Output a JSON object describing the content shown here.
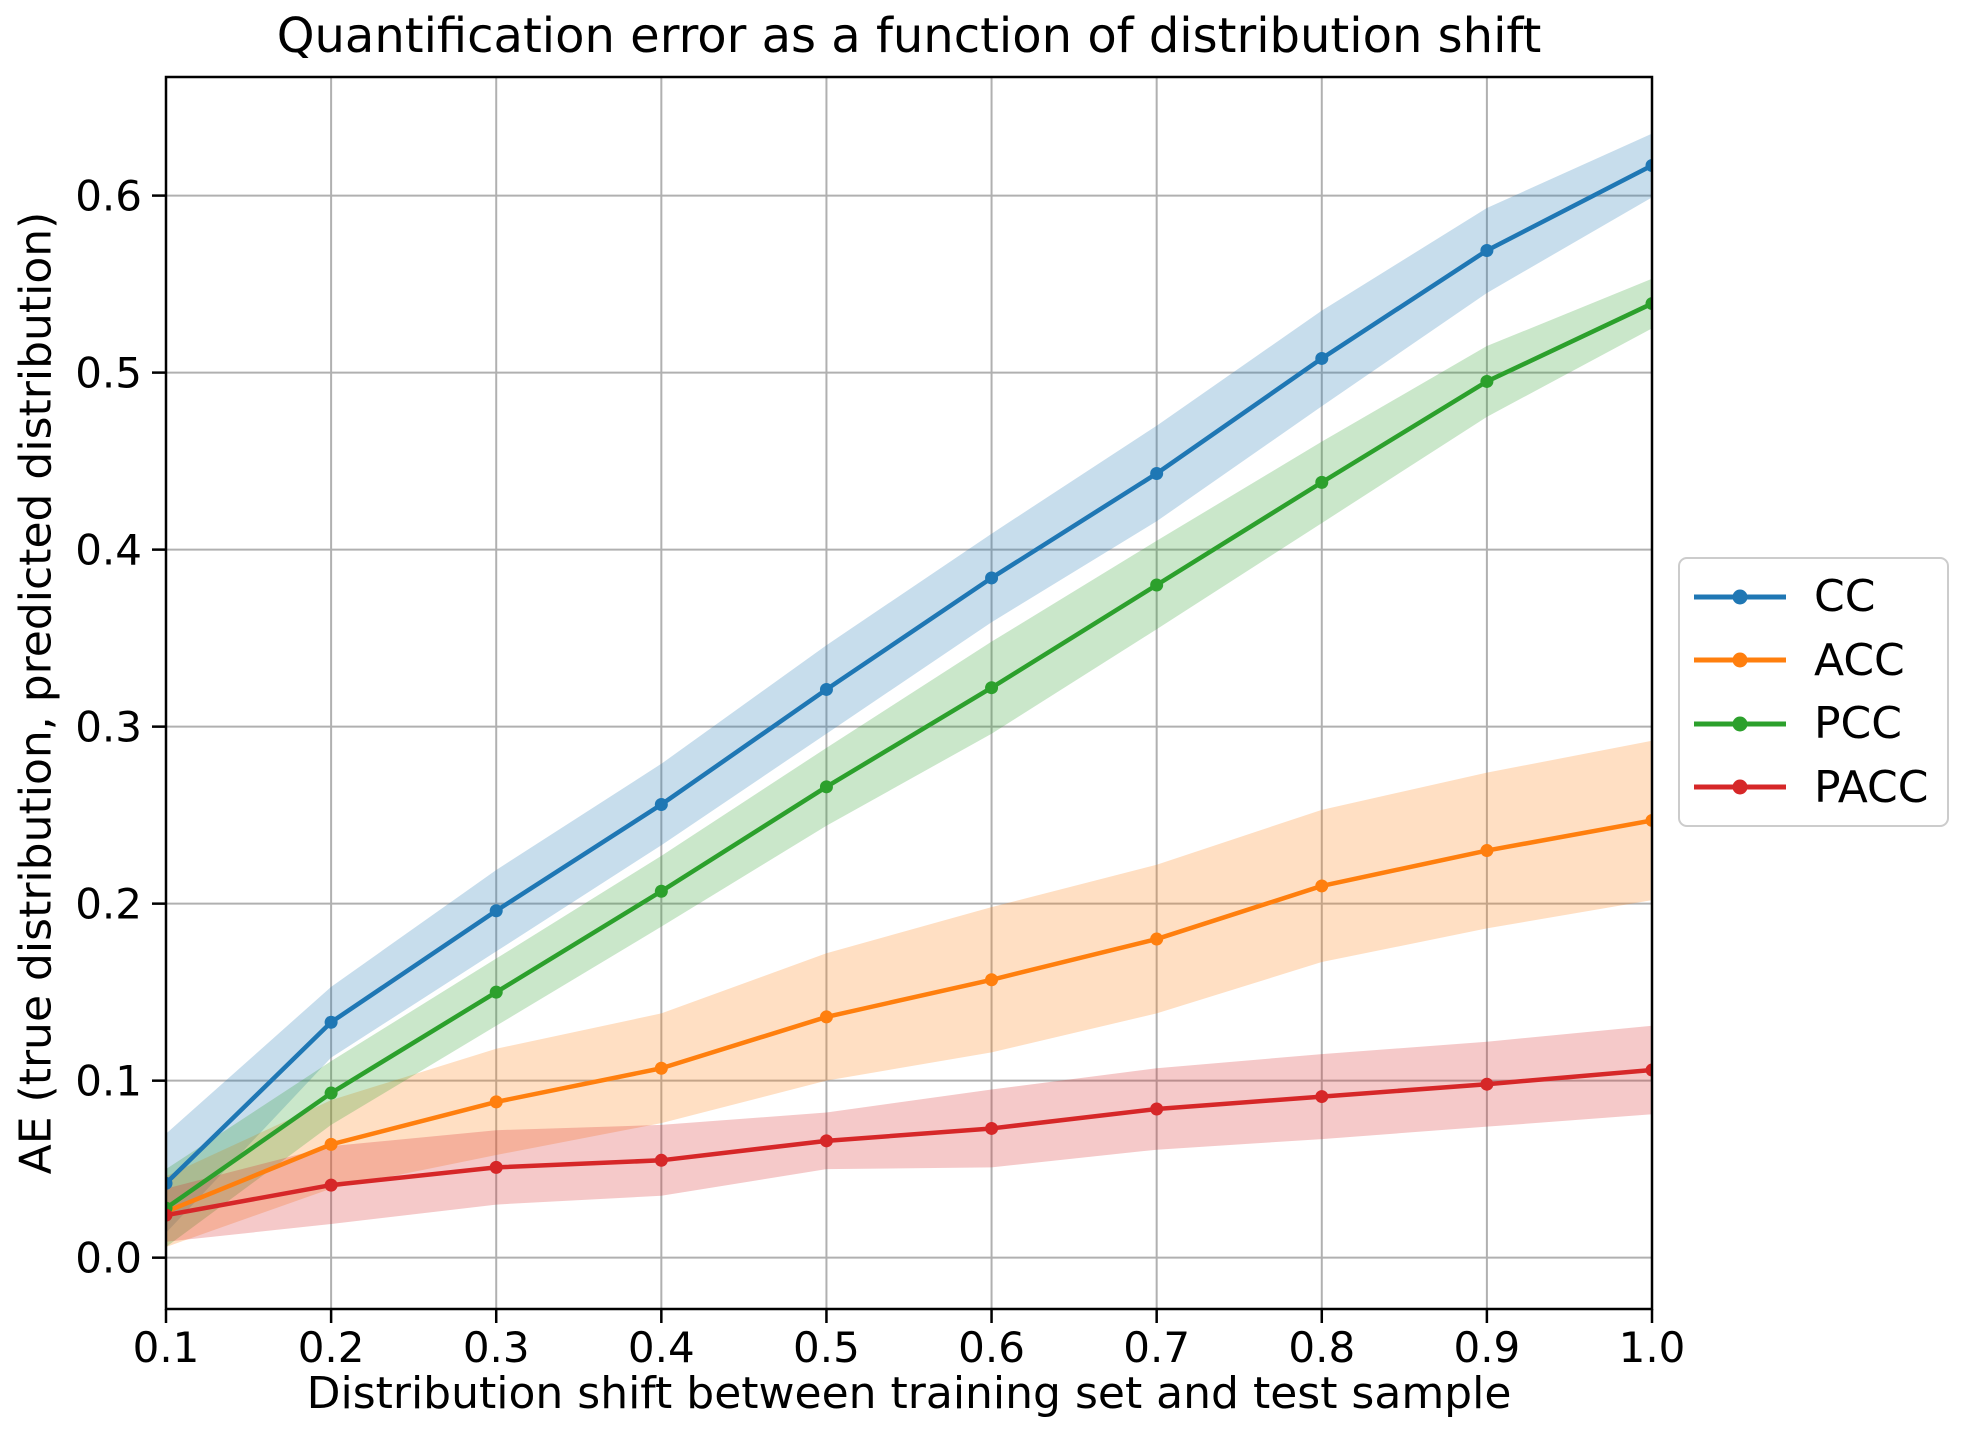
{
  "chart_data": {
    "type": "line",
    "title": "Quantification error as a function of distribution shift",
    "xlabel": "Distribution shift between training set and test sample",
    "ylabel": "AE (true distribution, predicted distribution)",
    "x": [
      0.1,
      0.2,
      0.3,
      0.4,
      0.5,
      0.6,
      0.7,
      0.8,
      0.9,
      1.0
    ],
    "xlim": [
      0.1,
      1.0
    ],
    "ylim": [
      -0.029,
      0.667
    ],
    "xticks": [
      0.1,
      0.2,
      0.3,
      0.4,
      0.5,
      0.6,
      0.7,
      0.8,
      0.9,
      1.0
    ],
    "yticks": [
      0.0,
      0.1,
      0.2,
      0.3,
      0.4,
      0.5,
      0.6
    ],
    "grid": true,
    "grid_color": "#b0b0b0",
    "spine_color": "#000000",
    "background_color": "#ffffff",
    "legend_position": "outside-right",
    "legend_border_color": "#cccccc",
    "band_alpha": 0.25,
    "series": [
      {
        "name": "CC",
        "color": "#1f77b4",
        "values": [
          0.042,
          0.133,
          0.196,
          0.256,
          0.321,
          0.384,
          0.443,
          0.508,
          0.569,
          0.617
        ],
        "band_lo": [
          0.014,
          0.113,
          0.173,
          0.233,
          0.296,
          0.359,
          0.416,
          0.481,
          0.545,
          0.599
        ],
        "band_hi": [
          0.07,
          0.153,
          0.219,
          0.279,
          0.346,
          0.409,
          0.47,
          0.535,
          0.593,
          0.635
        ]
      },
      {
        "name": "ACC",
        "color": "#ff7f0e",
        "values": [
          0.026,
          0.064,
          0.088,
          0.107,
          0.136,
          0.157,
          0.18,
          0.21,
          0.23,
          0.247
        ],
        "band_lo": [
          0.006,
          0.039,
          0.058,
          0.076,
          0.1,
          0.116,
          0.138,
          0.167,
          0.186,
          0.202
        ],
        "band_hi": [
          0.046,
          0.089,
          0.118,
          0.138,
          0.172,
          0.198,
          0.222,
          0.253,
          0.274,
          0.292
        ]
      },
      {
        "name": "PCC",
        "color": "#2ca02c",
        "values": [
          0.028,
          0.093,
          0.15,
          0.207,
          0.266,
          0.322,
          0.38,
          0.438,
          0.495,
          0.539
        ],
        "band_lo": [
          0.006,
          0.075,
          0.131,
          0.187,
          0.244,
          0.296,
          0.355,
          0.415,
          0.475,
          0.525
        ],
        "band_hi": [
          0.05,
          0.111,
          0.169,
          0.227,
          0.288,
          0.348,
          0.405,
          0.461,
          0.515,
          0.553
        ]
      },
      {
        "name": "PACC",
        "color": "#d62728",
        "values": [
          0.024,
          0.041,
          0.051,
          0.055,
          0.066,
          0.073,
          0.084,
          0.091,
          0.098,
          0.106
        ],
        "band_lo": [
          0.009,
          0.019,
          0.03,
          0.035,
          0.05,
          0.051,
          0.061,
          0.067,
          0.074,
          0.081
        ],
        "band_hi": [
          0.039,
          0.063,
          0.072,
          0.075,
          0.082,
          0.095,
          0.107,
          0.115,
          0.122,
          0.131
        ]
      }
    ]
  }
}
